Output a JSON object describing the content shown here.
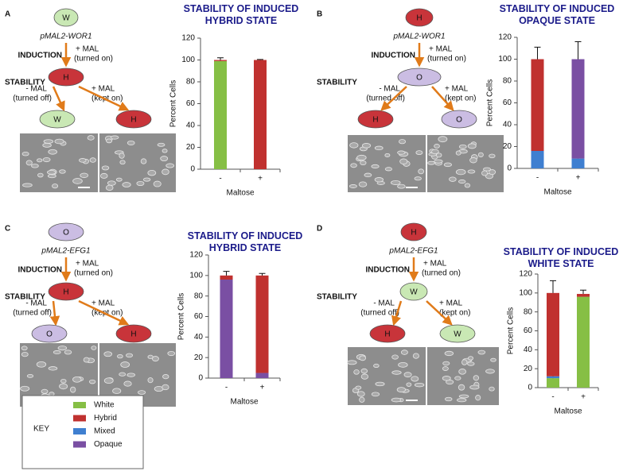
{
  "panels": [
    {
      "letter": "A",
      "top_state": {
        "label": "W",
        "color": "#c9e8b4"
      },
      "gene": "pMAL2-WOR1",
      "induction": "INDUCTION",
      "induction_condition": "+ MAL",
      "induction_note": "(turned on)",
      "stability": "STABILITY",
      "induced_state": {
        "label": "H",
        "color": "#c8343a"
      },
      "off_condition": "- MAL",
      "off_note": "(turned off)",
      "on_condition": "+ MAL",
      "on_note": "(kept on)",
      "off_state": {
        "label": "W",
        "color": "#c9e8b4"
      },
      "on_state": {
        "label": "H",
        "color": "#c8343a"
      }
    },
    {
      "letter": "B",
      "top_state": {
        "label": "H",
        "color": "#c8343a"
      },
      "gene": "pMAL2-WOR1",
      "induction": "INDUCTION",
      "induction_condition": "+ MAL",
      "induction_note": "(turned on)",
      "stability": "STABILITY",
      "induced_state": {
        "label": "O",
        "color": "#cbbde3"
      },
      "off_condition": "- MAL",
      "off_note": "(turned off)",
      "on_condition": "+ MAL",
      "on_note": "(kept on)",
      "off_state": {
        "label": "H",
        "color": "#c8343a"
      },
      "on_state": {
        "label": "O",
        "color": "#cbbde3"
      }
    },
    {
      "letter": "C",
      "top_state": {
        "label": "O",
        "color": "#cbbde3"
      },
      "gene": "pMAL2-EFG1",
      "induction": "INDUCTION",
      "induction_condition": "+ MAL",
      "induction_note": "(turned on)",
      "stability": "STABILITY",
      "induced_state": {
        "label": "H",
        "color": "#c8343a"
      },
      "off_condition": "- MAL",
      "off_note": "(turned off)",
      "on_condition": "+ MAL",
      "on_note": "(kept on)",
      "off_state": {
        "label": "O",
        "color": "#cbbde3"
      },
      "on_state": {
        "label": "H",
        "color": "#c8343a"
      }
    },
    {
      "letter": "D",
      "top_state": {
        "label": "H",
        "color": "#c8343a"
      },
      "gene": "pMAL2-EFG1",
      "induction": "INDUCTION",
      "induction_condition": "+ MAL",
      "induction_note": "(turned on)",
      "stability": "STABILITY",
      "induced_state": {
        "label": "W",
        "color": "#c9e8b4"
      },
      "off_condition": "- MAL",
      "off_note": "(turned off)",
      "on_condition": "+ MAL",
      "on_note": "(kept on)",
      "off_state": {
        "label": "H",
        "color": "#c8343a"
      },
      "on_state": {
        "label": "W",
        "color": "#c9e8b4"
      }
    }
  ],
  "chart_data": [
    {
      "type": "bar",
      "stacked": true,
      "title": "STABILITY OF INDUCED HYBRID STATE",
      "y_label": "Percent Cells",
      "x_label": "Maltose",
      "categories": [
        "-",
        "+"
      ],
      "ylim": [
        0,
        120
      ],
      "yticks": [
        0,
        20,
        40,
        60,
        80,
        100,
        120
      ],
      "series": [
        {
          "color": "#86bf45",
          "values": [
            99,
            0
          ],
          "errors": [
            3,
            null
          ]
        },
        {
          "color": "#c0312f",
          "values": [
            1,
            100
          ],
          "errors": [
            null,
            0.5
          ]
        }
      ]
    },
    {
      "type": "bar",
      "stacked": true,
      "title": "STABILITY OF INDUCED OPAQUE STATE",
      "y_label": "Percent Cells",
      "x_label": "Maltose",
      "categories": [
        "-",
        "+"
      ],
      "ylim": [
        0,
        120
      ],
      "yticks": [
        0,
        20,
        40,
        60,
        80,
        100,
        120
      ],
      "series": [
        {
          "color": "#3f7fd0",
          "values": [
            16,
            9
          ],
          "errors": [
            11,
            16
          ]
        },
        {
          "color": "#7a4fa3",
          "values": [
            0,
            91
          ],
          "errors": [
            null,
            16
          ]
        },
        {
          "color": "#c0312f",
          "values": [
            84,
            0
          ],
          "errors": [
            11,
            null
          ]
        }
      ]
    },
    {
      "type": "bar",
      "stacked": true,
      "title": "STABILITY OF INDUCED HYBRID STATE",
      "y_label": "Percent Cells",
      "x_label": "Maltose",
      "categories": [
        "-",
        "+"
      ],
      "ylim": [
        0,
        120
      ],
      "yticks": [
        0,
        20,
        40,
        60,
        80,
        100,
        120
      ],
      "series": [
        {
          "color": "#7a4fa3",
          "values": [
            96,
            5
          ],
          "errors": [
            null,
            1
          ]
        },
        {
          "color": "#c0312f",
          "values": [
            4,
            95
          ],
          "errors": [
            4,
            2
          ]
        }
      ]
    },
    {
      "type": "bar",
      "stacked": true,
      "title": "STABILITY OF INDUCED WHITE STATE",
      "y_label": "Percent Cells",
      "x_label": "Maltose",
      "categories": [
        "-",
        "+"
      ],
      "ylim": [
        0,
        120
      ],
      "yticks": [
        0,
        20,
        40,
        60,
        80,
        100,
        120
      ],
      "series": [
        {
          "color": "#86bf45",
          "values": [
            10,
            96
          ],
          "errors": [
            13,
            null
          ]
        },
        {
          "color": "#3f7fd0",
          "values": [
            2,
            0
          ],
          "errors": [
            null,
            null
          ]
        },
        {
          "color": "#c0312f",
          "values": [
            88,
            3
          ],
          "errors": [
            13,
            4
          ]
        }
      ]
    }
  ],
  "key": {
    "title": "KEY",
    "items": [
      {
        "label": "White",
        "color": "#86bf45"
      },
      {
        "label": "Hybrid",
        "color": "#c0312f"
      },
      {
        "label": "Mixed",
        "color": "#3f7fd0"
      },
      {
        "label": "Opaque",
        "color": "#7a4fa3"
      }
    ]
  }
}
